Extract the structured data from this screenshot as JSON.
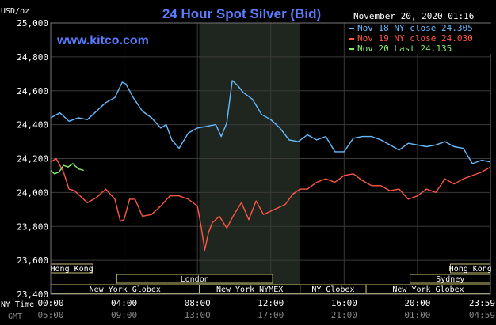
{
  "chart_data": {
    "type": "line",
    "title": "24 Hour Spot Silver (Bid)",
    "timestamp": "November 20, 2020 01:16",
    "website": "www.kitco.com",
    "ylabel": "USD/oz",
    "ylim": [
      23400,
      25000
    ],
    "y_ticks": [
      "25,000",
      "24,800",
      "24,600",
      "24,400",
      "24,200",
      "24,000",
      "23,800",
      "23,600",
      "23,400"
    ],
    "x_row_labels": [
      "NY Time",
      "GMT"
    ],
    "x_ticks_ny": [
      "00:00",
      "04:00",
      "08:00",
      "12:00",
      "16:00",
      "20:00",
      "23:59"
    ],
    "x_ticks_gmt": [
      "05:00",
      "09:00",
      "13:00",
      "17:00",
      "21:00",
      "01:00",
      "04:59"
    ],
    "grid": true,
    "legend_position": "top-right",
    "series": [
      {
        "name": "Nov 18 NY close 24.305",
        "color": "#66bbff",
        "x": [
          0,
          0.5,
          1,
          1.5,
          2,
          2.5,
          3,
          3.5,
          3.9,
          4.1,
          4.5,
          5,
          5.5,
          6,
          6.3,
          6.6,
          7,
          7.5,
          8,
          8.5,
          9,
          9.3,
          9.6,
          9.9,
          10.2,
          10.5,
          11,
          11.5,
          12,
          12.5,
          13,
          13.5,
          14,
          14.5,
          15,
          15.5,
          16,
          16.5,
          17,
          17.5,
          18,
          18.5,
          19,
          19.5,
          20,
          20.5,
          21,
          21.5,
          22,
          22.5,
          23,
          23.5,
          23.98
        ],
        "values": [
          24.44,
          24.47,
          24.42,
          24.44,
          24.43,
          24.48,
          24.53,
          24.56,
          24.65,
          24.64,
          24.56,
          24.48,
          24.44,
          24.38,
          24.4,
          24.31,
          24.26,
          24.35,
          24.38,
          24.39,
          24.4,
          24.33,
          24.41,
          24.66,
          24.63,
          24.59,
          24.55,
          24.46,
          24.43,
          24.38,
          24.31,
          24.3,
          24.34,
          24.31,
          24.33,
          24.24,
          24.24,
          24.32,
          24.33,
          24.33,
          24.31,
          24.28,
          24.25,
          24.29,
          24.28,
          24.27,
          24.28,
          24.3,
          24.27,
          24.26,
          24.17,
          24.19,
          24.18
        ]
      },
      {
        "name": "Nov 19 NY close 24.030",
        "color": "#ff5544",
        "x": [
          0,
          0.3,
          0.5,
          0.7,
          1,
          1.3,
          1.6,
          2,
          2.5,
          3,
          3.5,
          3.8,
          4,
          4.3,
          4.6,
          5,
          5.5,
          6,
          6.5,
          7,
          7.5,
          8,
          8.2,
          8.4,
          8.6,
          8.8,
          9.2,
          9.6,
          10,
          10.4,
          10.8,
          11.2,
          11.6,
          12,
          12.4,
          12.8,
          13.2,
          13.6,
          14,
          14.5,
          15,
          15.5,
          16,
          16.5,
          17,
          17.5,
          18,
          18.5,
          19,
          19.5,
          20,
          20.5,
          21,
          21.5,
          22,
          22.5,
          23,
          23.5,
          23.98
        ],
        "values": [
          24.18,
          24.2,
          24.16,
          24.12,
          24.02,
          24.01,
          23.98,
          23.94,
          23.97,
          24.02,
          23.96,
          23.83,
          23.84,
          23.96,
          23.96,
          23.86,
          23.87,
          23.92,
          23.98,
          23.98,
          23.96,
          23.92,
          23.8,
          23.66,
          23.76,
          23.82,
          23.86,
          23.79,
          23.87,
          23.94,
          23.84,
          23.95,
          23.87,
          23.89,
          23.91,
          23.93,
          23.99,
          24.02,
          24.02,
          24.06,
          24.08,
          24.06,
          24.1,
          24.11,
          24.07,
          24.04,
          24.04,
          24.01,
          24.02,
          23.96,
          23.98,
          24.02,
          24.0,
          24.08,
          24.05,
          24.08,
          24.1,
          24.12,
          24.15
        ]
      },
      {
        "name": "Nov 20 Last 24.135",
        "color": "#88ee66",
        "x": [
          0,
          0.2,
          0.45,
          0.7,
          0.95,
          1.2,
          1.5,
          1.8
        ],
        "values": [
          24.13,
          24.11,
          24.12,
          24.16,
          24.15,
          24.17,
          24.14,
          24.13
        ]
      }
    ],
    "sessions": [
      {
        "name": "Hong Kong",
        "row": 0,
        "start": 0,
        "end": 2.3
      },
      {
        "name": "Hong Kong",
        "row": 0,
        "start": 21.8,
        "end": 23.98
      },
      {
        "name": "London",
        "row": 1,
        "start": 3.6,
        "end": 12.1
      },
      {
        "name": "Sydney",
        "row": 1,
        "start": 19.6,
        "end": 23.98
      },
      {
        "name": "New York Globex",
        "row": 2,
        "start": 0,
        "end": 8.1
      },
      {
        "name": "New York NYMEX",
        "row": 2,
        "start": 8.1,
        "end": 13.6
      },
      {
        "name": "NY Globex",
        "row": 2,
        "start": 13.6,
        "end": 17.2
      },
      {
        "name": "New York Globex",
        "row": 2,
        "start": 17.2,
        "end": 23.98
      }
    ],
    "shaded_region": [
      8.1,
      13.6
    ]
  }
}
